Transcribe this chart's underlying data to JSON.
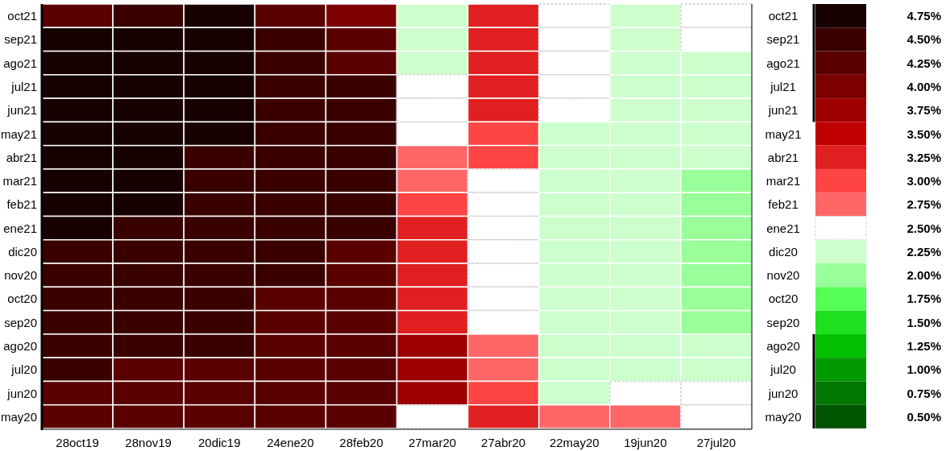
{
  "chart_data": {
    "type": "heatmap",
    "categories": [
      "28oct19",
      "28nov19",
      "20dic19",
      "24ene20",
      "28feb20",
      "27mar20",
      "27abr20",
      "22may20",
      "19jun20",
      "27jul20"
    ],
    "y_categories": [
      "oct21",
      "sep21",
      "ago21",
      "jul21",
      "jun21",
      "may21",
      "abr21",
      "mar21",
      "feb21",
      "ene21",
      "dic20",
      "nov20",
      "oct20",
      "sep20",
      "ago20",
      "jul20",
      "jun20",
      "may20"
    ],
    "y2_categories": [
      "oct21",
      "sep21",
      "ago21",
      "jul21",
      "jun21",
      "may21",
      "abr21",
      "mar21",
      "feb21",
      "ene21",
      "dic20",
      "nov20",
      "oct20",
      "sep20",
      "ago20",
      "jul20",
      "jun20",
      "may20"
    ],
    "cells": [
      [
        4.25,
        4.5,
        4.75,
        4.25,
        4.0,
        2.25,
        3.25,
        2.5,
        2.25,
        2.5
      ],
      [
        4.75,
        4.75,
        4.75,
        4.5,
        4.25,
        2.25,
        3.25,
        2.5,
        2.25,
        2.5
      ],
      [
        4.75,
        4.75,
        4.75,
        4.5,
        4.25,
        2.25,
        3.25,
        2.5,
        2.25,
        2.25
      ],
      [
        4.75,
        4.75,
        4.75,
        4.5,
        4.5,
        2.5,
        3.25,
        2.5,
        2.25,
        2.25
      ],
      [
        4.75,
        4.75,
        4.75,
        4.5,
        4.5,
        2.5,
        3.25,
        2.5,
        2.25,
        2.25
      ],
      [
        4.75,
        4.75,
        4.75,
        4.5,
        4.5,
        2.5,
        3.0,
        2.25,
        2.25,
        2.25
      ],
      [
        4.75,
        4.75,
        4.5,
        4.5,
        4.5,
        2.75,
        3.0,
        2.25,
        2.25,
        2.25
      ],
      [
        4.75,
        4.75,
        4.5,
        4.5,
        4.5,
        2.75,
        2.5,
        2.25,
        2.25,
        2.0
      ],
      [
        4.75,
        4.75,
        4.5,
        4.5,
        4.5,
        3.0,
        2.5,
        2.25,
        2.25,
        2.0
      ],
      [
        4.75,
        4.5,
        4.5,
        4.5,
        4.5,
        3.25,
        2.5,
        2.25,
        2.25,
        2.0
      ],
      [
        4.5,
        4.5,
        4.5,
        4.5,
        4.25,
        3.25,
        2.5,
        2.25,
        2.25,
        2.0
      ],
      [
        4.5,
        4.5,
        4.5,
        4.5,
        4.25,
        3.25,
        2.5,
        2.25,
        2.25,
        2.0
      ],
      [
        4.5,
        4.5,
        4.5,
        4.25,
        4.25,
        3.25,
        2.5,
        2.25,
        2.25,
        2.0
      ],
      [
        4.5,
        4.5,
        4.5,
        4.25,
        4.25,
        3.25,
        2.5,
        2.25,
        2.25,
        2.0
      ],
      [
        4.5,
        4.5,
        4.5,
        4.25,
        4.25,
        3.75,
        2.75,
        2.25,
        2.25,
        2.25
      ],
      [
        4.5,
        4.25,
        4.25,
        4.25,
        4.25,
        3.75,
        2.75,
        2.25,
        2.25,
        2.25
      ],
      [
        4.25,
        4.25,
        4.25,
        4.25,
        4.25,
        3.75,
        3.0,
        2.25,
        2.5,
        2.5
      ],
      [
        4.25,
        4.25,
        4.25,
        4.25,
        4.25,
        2.5,
        3.25,
        2.75,
        2.75,
        2.5
      ]
    ],
    "clim": [
      0.5,
      4.75
    ],
    "cticks": [
      {
        "value": 4.75,
        "label": "4.75%"
      },
      {
        "value": 4.5,
        "label": "4.50%"
      },
      {
        "value": 4.25,
        "label": "4.25%"
      },
      {
        "value": 4.0,
        "label": "4.00%"
      },
      {
        "value": 3.75,
        "label": "3.75%"
      },
      {
        "value": 3.5,
        "label": "3.50%"
      },
      {
        "value": 3.25,
        "label": "3.25%"
      },
      {
        "value": 3.0,
        "label": "3.00%"
      },
      {
        "value": 2.75,
        "label": "2.75%"
      },
      {
        "value": 2.5,
        "label": "2.50%"
      },
      {
        "value": 2.25,
        "label": "2.25%"
      },
      {
        "value": 2.0,
        "label": "2.00%"
      },
      {
        "value": 1.75,
        "label": "1.75%"
      },
      {
        "value": 1.5,
        "label": "1.50%"
      },
      {
        "value": 1.25,
        "label": "1.25%"
      },
      {
        "value": 1.0,
        "label": "1.00%"
      },
      {
        "value": 0.75,
        "label": "0.75%"
      },
      {
        "value": 0.5,
        "label": "0.50%"
      }
    ],
    "colors": [
      "#170000",
      "#3a0000",
      "#5a0000",
      "#7c0000",
      "#9e0000",
      "#c00000",
      "#e02020",
      "#ff4444",
      "#ff6666",
      "#ffffff",
      "#ccffcc",
      "#99ff99",
      "#55ff55",
      "#1ee01e",
      "#00c000",
      "#009900",
      "#007700",
      "#005500"
    ]
  }
}
